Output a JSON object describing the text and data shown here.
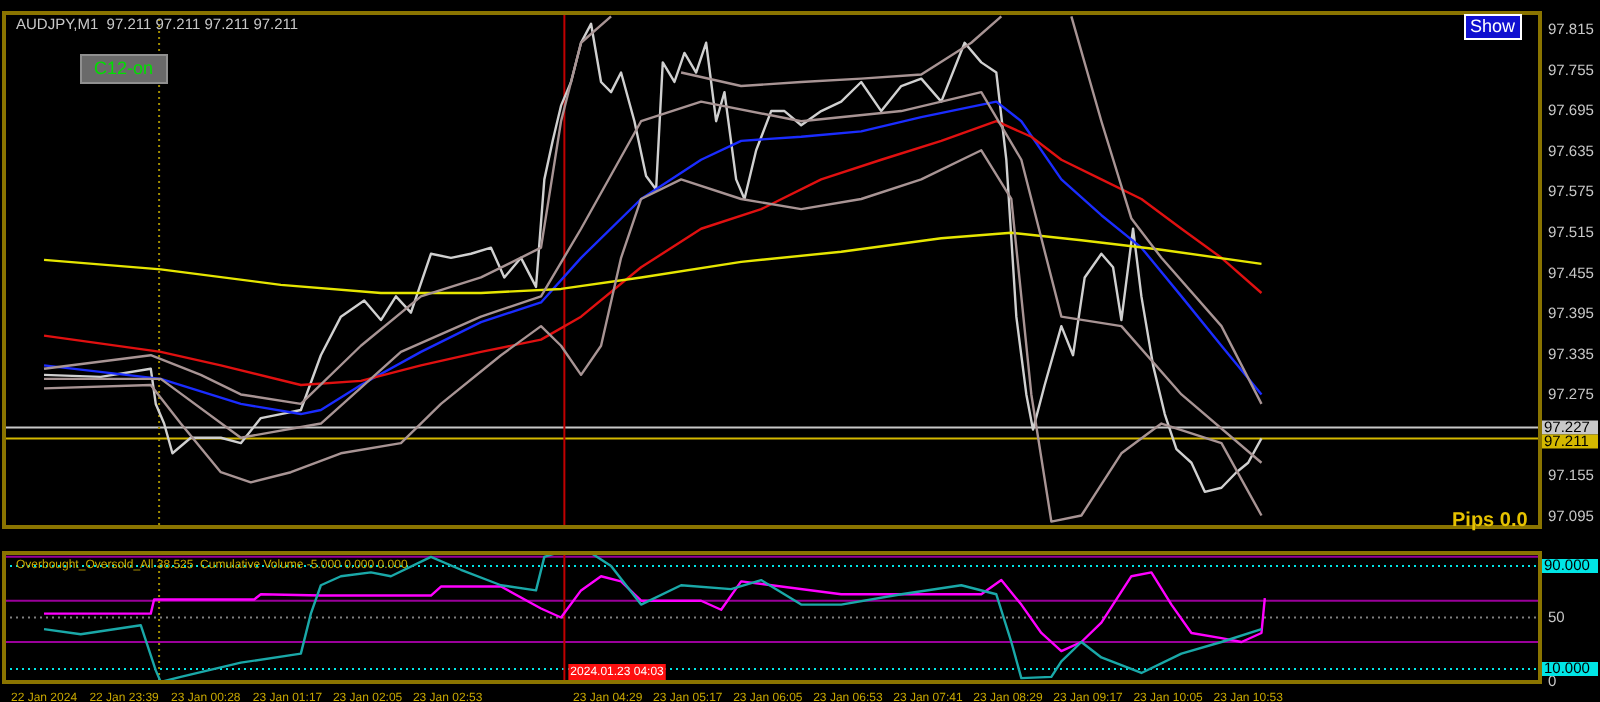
{
  "chart_data": [
    {
      "type": "line",
      "title": "AUDJPY,M1  97.211 97.211 97.211 97.211",
      "annotations": [
        "C12-on",
        "Show",
        "Pips 0.0"
      ],
      "tick_labels": "y",
      "xlim": [
        "2024-01-22T22:27",
        "2024-01-23T13:48"
      ],
      "ylim": [
        97.08,
        97.84
      ],
      "yticks": [
        97.095,
        97.155,
        97.275,
        97.335,
        97.395,
        97.455,
        97.515,
        97.575,
        97.635,
        97.695,
        97.755,
        97.815
      ],
      "series": [
        {
          "color": "#a89494",
          "x": [
            "2024-01-22T22:51",
            "2024-01-22T23:55",
            "2024-01-23T00:25",
            "2024-01-23T00:49",
            "2024-01-23T01:25",
            "2024-01-23T02:01",
            "2024-01-23T02:37",
            "2024-01-23T03:13",
            "2024-01-23T03:49",
            "2024-01-23T04:01",
            "2024-01-23T04:13",
            "2024-01-23T04:31",
            "2024-01-23T04:43",
            "2024-01-23T05:13",
            "2024-01-23T05:49",
            "2024-01-23T06:25",
            "2024-01-23T07:01",
            "2024-01-23T07:37",
            "2024-01-23T08:07",
            "2024-01-23T08:25",
            "2024-01-23T08:43",
            "2024-01-23T09:07",
            "2024-01-23T09:25",
            "2024-01-23T09:43",
            "2024-01-23T10:01",
            "2024-01-23T10:37",
            "2024-01-23T11:01"
          ],
          "values": [
            97.314,
            97.334,
            97.305,
            97.276,
            97.262,
            97.348,
            97.421,
            97.449,
            97.493,
            97.68,
            97.796,
            97.835,
            null,
            97.752,
            97.732,
            97.738,
            97.743,
            97.749,
            97.796,
            97.835,
            null,
            97.835,
            97.68,
            97.536,
            97.478,
            97.377,
            97.262
          ]
        },
        {
          "color": "#a89494",
          "x": [
            "2024-01-22T22:51",
            "2024-01-23T00:01",
            "2024-01-23T00:49",
            "2024-01-23T01:37",
            "2024-01-23T02:25",
            "2024-01-23T03:13",
            "2024-01-23T03:49",
            "2024-01-23T04:13",
            "2024-01-23T04:49",
            "2024-01-23T05:25",
            "2024-01-23T06:25",
            "2024-01-23T07:25",
            "2024-01-23T08:13",
            "2024-01-23T08:37",
            "2024-01-23T09:01",
            "2024-01-23T09:37",
            "2024-01-23T10:13",
            "2024-01-23T11:01"
          ],
          "values": [
            97.299,
            97.299,
            97.212,
            97.233,
            97.339,
            97.391,
            97.421,
            97.521,
            97.68,
            97.709,
            97.68,
            97.695,
            97.723,
            97.623,
            97.391,
            97.377,
            97.276,
            97.175
          ]
        },
        {
          "color": "#a89494",
          "x": [
            "2024-01-22T22:51",
            "2024-01-22T23:55",
            "2024-01-23T00:13",
            "2024-01-23T00:37",
            "2024-01-23T00:55",
            "2024-01-23T01:19",
            "2024-01-23T01:49",
            "2024-01-23T02:25",
            "2024-01-23T02:49",
            "2024-01-23T03:25",
            "2024-01-23T03:49",
            "2024-01-23T04:01",
            "2024-01-23T04:13",
            "2024-01-23T04:25",
            "2024-01-23T04:37",
            "2024-01-23T04:49",
            "2024-01-23T05:13",
            "2024-01-23T05:49",
            "2024-01-23T06:25",
            "2024-01-23T07:01",
            "2024-01-23T07:37",
            "2024-01-23T08:13",
            "2024-01-23T08:31",
            "2024-01-23T08:43",
            "2024-01-23T08:55",
            "2024-01-23T09:13",
            "2024-01-23T09:37",
            "2024-01-23T10:01",
            "2024-01-23T10:37",
            "2024-01-23T11:01"
          ],
          "values": [
            97.285,
            97.29,
            97.233,
            97.161,
            97.146,
            97.161,
            97.189,
            97.204,
            97.262,
            97.334,
            97.377,
            97.348,
            97.305,
            97.348,
            97.478,
            97.565,
            97.594,
            97.565,
            97.55,
            97.565,
            97.594,
            97.637,
            97.565,
            97.276,
            97.088,
            97.097,
            97.189,
            97.233,
            97.204,
            97.097
          ]
        },
        {
          "color": "#e6e600",
          "x": [
            "2024-01-22T22:51",
            "2024-01-23T00:01",
            "2024-01-23T01:13",
            "2024-01-23T02:13",
            "2024-01-23T03:13",
            "2024-01-23T04:01",
            "2024-01-23T04:49",
            "2024-01-23T05:49",
            "2024-01-23T06:49",
            "2024-01-23T07:49",
            "2024-01-23T08:31",
            "2024-01-23T09:13",
            "2024-01-23T10:01",
            "2024-01-23T11:01"
          ],
          "values": [
            97.475,
            97.461,
            97.438,
            97.426,
            97.426,
            97.432,
            97.449,
            97.472,
            97.487,
            97.507,
            97.515,
            97.504,
            97.49,
            97.469
          ]
        },
        {
          "color": "#e01010",
          "x": [
            "2024-01-22T22:51",
            "2024-01-23T00:01",
            "2024-01-23T00:37",
            "2024-01-23T01:25",
            "2024-01-23T02:01",
            "2024-01-23T02:37",
            "2024-01-23T03:13",
            "2024-01-23T03:49",
            "2024-01-23T04:13",
            "2024-01-23T04:49",
            "2024-01-23T05:25",
            "2024-01-23T06:01",
            "2024-01-23T06:37",
            "2024-01-23T07:13",
            "2024-01-23T07:49",
            "2024-01-23T08:22",
            "2024-01-23T08:43",
            "2024-01-23T09:01",
            "2024-01-23T09:25",
            "2024-01-23T09:49",
            "2024-01-23T10:13",
            "2024-01-23T10:37",
            "2024-01-23T11:01"
          ],
          "values": [
            97.363,
            97.339,
            97.319,
            97.29,
            97.296,
            97.319,
            97.339,
            97.357,
            97.391,
            97.464,
            97.521,
            97.55,
            97.594,
            97.623,
            97.651,
            97.68,
            97.657,
            97.623,
            97.594,
            97.565,
            97.521,
            97.478,
            97.426
          ]
        },
        {
          "color": "#1a2cff",
          "x": [
            "2024-01-22T22:51",
            "2024-01-23T00:01",
            "2024-01-23T00:49",
            "2024-01-23T01:25",
            "2024-01-23T01:37",
            "2024-01-23T02:01",
            "2024-01-23T02:37",
            "2024-01-23T03:13",
            "2024-01-23T03:49",
            "2024-01-23T04:13",
            "2024-01-23T04:49",
            "2024-01-23T05:25",
            "2024-01-23T05:49",
            "2024-01-23T06:25",
            "2024-01-23T07:01",
            "2024-01-23T07:37",
            "2024-01-23T08:22",
            "2024-01-23T08:37",
            "2024-01-23T09:01",
            "2024-01-23T09:25",
            "2024-01-23T09:49",
            "2024-01-23T10:13",
            "2024-01-23T10:37",
            "2024-01-23T11:01"
          ],
          "values": [
            97.319,
            97.299,
            97.262,
            97.247,
            97.253,
            97.29,
            97.339,
            97.383,
            97.412,
            97.478,
            97.565,
            97.623,
            97.651,
            97.657,
            97.665,
            97.686,
            97.709,
            97.68,
            97.594,
            97.541,
            97.493,
            97.421,
            97.348,
            97.276
          ]
        },
        {
          "color": "#d0d0d0",
          "x": [
            "2024-01-22T22:51",
            "2024-01-22T23:25",
            "2024-01-22T23:55",
            "2024-01-22T23:58",
            "2024-01-23T00:03",
            "2024-01-23T00:08",
            "2024-01-23T00:19",
            "2024-01-23T00:37",
            "2024-01-23T00:49",
            "2024-01-23T01:01",
            "2024-01-23T01:13",
            "2024-01-23T01:25",
            "2024-01-23T01:37",
            "2024-01-23T01:49",
            "2024-01-23T02:03",
            "2024-01-23T02:13",
            "2024-01-23T02:22",
            "2024-01-23T02:31",
            "2024-01-23T02:43",
            "2024-01-23T02:55",
            "2024-01-23T03:07",
            "2024-01-23T03:19",
            "2024-01-23T03:27",
            "2024-01-23T03:37",
            "2024-01-23T03:46",
            "2024-01-23T03:51",
            "2024-01-23T03:56",
            "2024-01-23T04:01",
            "2024-01-23T04:07",
            "2024-01-23T04:13",
            "2024-01-23T04:19",
            "2024-01-23T04:25",
            "2024-01-23T04:31",
            "2024-01-23T04:37",
            "2024-01-23T04:45",
            "2024-01-23T04:52",
            "2024-01-23T04:58",
            "2024-01-23T05:02",
            "2024-01-23T05:09",
            "2024-01-23T05:15",
            "2024-01-23T05:22",
            "2024-01-23T05:28",
            "2024-01-23T05:34",
            "2024-01-23T05:39",
            "2024-01-23T05:46",
            "2024-01-23T05:51",
            "2024-01-23T05:58",
            "2024-01-23T06:07",
            "2024-01-23T06:15",
            "2024-01-23T06:25",
            "2024-01-23T06:37",
            "2024-01-23T06:49",
            "2024-01-23T07:01",
            "2024-01-23T07:13",
            "2024-01-23T07:25",
            "2024-01-23T07:37",
            "2024-01-23T07:49",
            "2024-01-23T08:03",
            "2024-01-23T08:13",
            "2024-01-23T08:22",
            "2024-01-23T08:28",
            "2024-01-23T08:34",
            "2024-01-23T08:40",
            "2024-01-23T08:44",
            "2024-01-23T08:51",
            "2024-01-23T09:01",
            "2024-01-23T09:08",
            "2024-01-23T09:15",
            "2024-01-23T09:25",
            "2024-01-23T09:32",
            "2024-01-23T09:37",
            "2024-01-23T09:44",
            "2024-01-23T09:49",
            "2024-01-23T09:56",
            "2024-01-23T10:03",
            "2024-01-23T10:10",
            "2024-01-23T10:19",
            "2024-01-23T10:27",
            "2024-01-23T10:37",
            "2024-01-23T10:46",
            "2024-01-23T10:53",
            "2024-01-23T11:01"
          ],
          "values": [
            97.305,
            97.302,
            97.314,
            97.262,
            97.233,
            97.189,
            97.212,
            97.212,
            97.204,
            97.241,
            97.247,
            97.253,
            97.334,
            97.391,
            97.415,
            97.386,
            97.421,
            97.397,
            97.484,
            97.478,
            97.484,
            97.493,
            97.449,
            97.478,
            97.435,
            97.594,
            97.651,
            97.703,
            97.738,
            97.796,
            97.824,
            97.738,
            97.723,
            97.752,
            97.68,
            97.599,
            97.579,
            97.767,
            97.738,
            97.781,
            97.752,
            97.796,
            97.68,
            97.723,
            97.594,
            97.565,
            97.637,
            97.695,
            97.695,
            97.674,
            97.695,
            97.709,
            97.738,
            97.695,
            97.732,
            97.743,
            97.709,
            97.796,
            97.767,
            97.752,
            97.623,
            97.391,
            97.276,
            97.224,
            97.29,
            97.377,
            97.334,
            97.449,
            97.484,
            97.464,
            97.386,
            97.521,
            97.421,
            97.319,
            97.247,
            97.195,
            97.175,
            97.132,
            97.138,
            97.161,
            97.175,
            97.211
          ]
        }
      ],
      "ref_lines": [
        {
          "axis": "y",
          "value": 97.227,
          "label": "97.227",
          "color": "#c8c8c8"
        },
        {
          "axis": "y",
          "value": 97.211,
          "label": "97.211",
          "color": "#d4b800"
        },
        {
          "axis": "x",
          "value": "2024-01-23T00:00",
          "color": "#a08c00",
          "line_style": "dotted"
        },
        {
          "axis": "x",
          "value": "2024-01-23T04:03",
          "color": "#c00000"
        }
      ]
    },
    {
      "type": "line",
      "title": "Overbought_Oversold_All 38.525  Cumulative Volume -5.000 0.000 0.000",
      "xlim": [
        "2024-01-22T22:27",
        "2024-01-23T13:48"
      ],
      "xticks": [
        {
          "value": "2024-01-22T22:51",
          "label": "22 Jan 2024"
        },
        {
          "value": "2024-01-22T23:39",
          "label": "22 Jan 23:39"
        },
        {
          "value": "2024-01-23T00:28",
          "label": "23 Jan 00:28"
        },
        {
          "value": "2024-01-23T01:17",
          "label": "23 Jan 01:17"
        },
        {
          "value": "2024-01-23T02:05",
          "label": "23 Jan 02:05"
        },
        {
          "value": "2024-01-23T02:53",
          "label": "23 Jan 02:53"
        },
        {
          "value": "2024-01-23T04:29",
          "label": "23 Jan 04:29"
        },
        {
          "value": "2024-01-23T05:17",
          "label": "23 Jan 05:17"
        },
        {
          "value": "2024-01-23T06:05",
          "label": "23 Jan 06:05"
        },
        {
          "value": "2024-01-23T06:53",
          "label": "23 Jan 06:53"
        },
        {
          "value": "2024-01-23T07:41",
          "label": "23 Jan 07:41"
        },
        {
          "value": "2024-01-23T08:29",
          "label": "23 Jan 08:29"
        },
        {
          "value": "2024-01-23T09:17",
          "label": "23 Jan 09:17"
        },
        {
          "value": "2024-01-23T10:05",
          "label": "23 Jan 10:05"
        },
        {
          "value": "2024-01-23T10:53",
          "label": "23 Jan 10:53"
        }
      ],
      "ylim": [
        0,
        100
      ],
      "yticks": [
        0,
        50
      ],
      "series": [
        {
          "color": "#1aa8a8",
          "x": [
            "2024-01-22T22:51",
            "2024-01-22T23:13",
            "2024-01-22T23:49",
            "2024-01-22T23:58",
            "2024-01-23T00:01",
            "2024-01-23T00:13",
            "2024-01-23T00:49",
            "2024-01-23T01:25",
            "2024-01-23T01:31",
            "2024-01-23T01:37",
            "2024-01-23T01:49",
            "2024-01-23T02:07",
            "2024-01-23T02:19",
            "2024-01-23T02:43",
            "2024-01-23T03:01",
            "2024-01-23T03:25",
            "2024-01-23T03:46",
            "2024-01-23T03:51",
            "2024-01-23T03:58",
            "2024-01-23T04:19",
            "2024-01-23T04:31",
            "2024-01-23T04:49",
            "2024-01-23T05:13",
            "2024-01-23T05:43",
            "2024-01-23T06:01",
            "2024-01-23T06:25",
            "2024-01-23T06:49",
            "2024-01-23T07:25",
            "2024-01-23T08:01",
            "2024-01-23T08:22",
            "2024-01-23T08:31",
            "2024-01-23T08:37",
            "2024-01-23T08:55",
            "2024-01-23T09:01",
            "2024-01-23T09:13",
            "2024-01-23T09:25",
            "2024-01-23T09:49",
            "2024-01-23T10:13",
            "2024-01-23T10:37",
            "2024-01-23T11:01"
          ],
          "values": [
            41,
            37,
            44,
            9,
            0,
            4,
            15,
            22,
            53,
            75,
            82,
            85,
            82,
            97,
            87,
            75,
            71,
            97,
            100,
            100,
            90,
            60,
            75,
            72,
            79,
            60,
            60,
            68,
            75,
            68,
            31,
            3,
            4,
            16,
            31,
            19,
            7,
            22,
            31,
            41
          ]
        },
        {
          "color": "#ff00ff",
          "x": [
            "2024-01-22T22:51",
            "2024-01-22T23:13",
            "2024-01-22T23:55",
            "2024-01-22T23:57",
            "2024-01-23T00:57",
            "2024-01-23T01:01",
            "2024-01-23T01:37",
            "2024-01-23T02:43",
            "2024-01-23T02:49",
            "2024-01-23T03:25",
            "2024-01-23T03:49",
            "2024-01-23T04:01",
            "2024-01-23T04:13",
            "2024-01-23T04:25",
            "2024-01-23T04:37",
            "2024-01-23T04:49",
            "2024-01-23T05:25",
            "2024-01-23T05:37",
            "2024-01-23T05:49",
            "2024-01-23T06:49",
            "2024-01-23T08:13",
            "2024-01-23T08:25",
            "2024-01-23T08:37",
            "2024-01-23T08:49",
            "2024-01-23T09:01",
            "2024-01-23T09:13",
            "2024-01-23T09:25",
            "2024-01-23T09:43",
            "2024-01-23T09:55",
            "2024-01-23T10:07",
            "2024-01-23T10:19",
            "2024-01-23T10:37",
            "2024-01-23T10:49",
            "2024-01-23T11:01",
            "2024-01-23T11:03"
          ],
          "values": [
            53,
            53,
            53,
            64,
            64,
            68,
            67,
            67,
            74,
            74,
            57,
            50,
            71,
            82,
            78,
            63,
            63,
            56,
            78,
            68,
            68,
            79,
            60,
            38,
            24,
            31,
            46,
            82,
            85,
            60,
            38,
            34,
            31,
            38,
            65
          ]
        }
      ],
      "ref_lines": [
        {
          "axis": "y",
          "value": 90,
          "label": "90.000",
          "color": "#00e5e5",
          "line_style": "dotted"
        },
        {
          "axis": "y",
          "value": 10,
          "label": "10.000",
          "color": "#00e5e5",
          "line_style": "dotted"
        },
        {
          "axis": "y",
          "value": 50,
          "color": "#808080",
          "line_style": "dotted"
        },
        {
          "axis": "y",
          "value": 97,
          "color": "#9a009a"
        },
        {
          "axis": "y",
          "value": 63,
          "color": "#9a009a"
        },
        {
          "axis": "y",
          "value": 31,
          "color": "#9a009a"
        },
        {
          "axis": "x",
          "value": "2024-01-23T00:00",
          "color": "#a08c00",
          "line_style": "dotted"
        },
        {
          "axis": "x",
          "value": "2024-01-23T04:03",
          "label": "2024.01.23 04:03",
          "color": "#c00000"
        }
      ]
    }
  ]
}
